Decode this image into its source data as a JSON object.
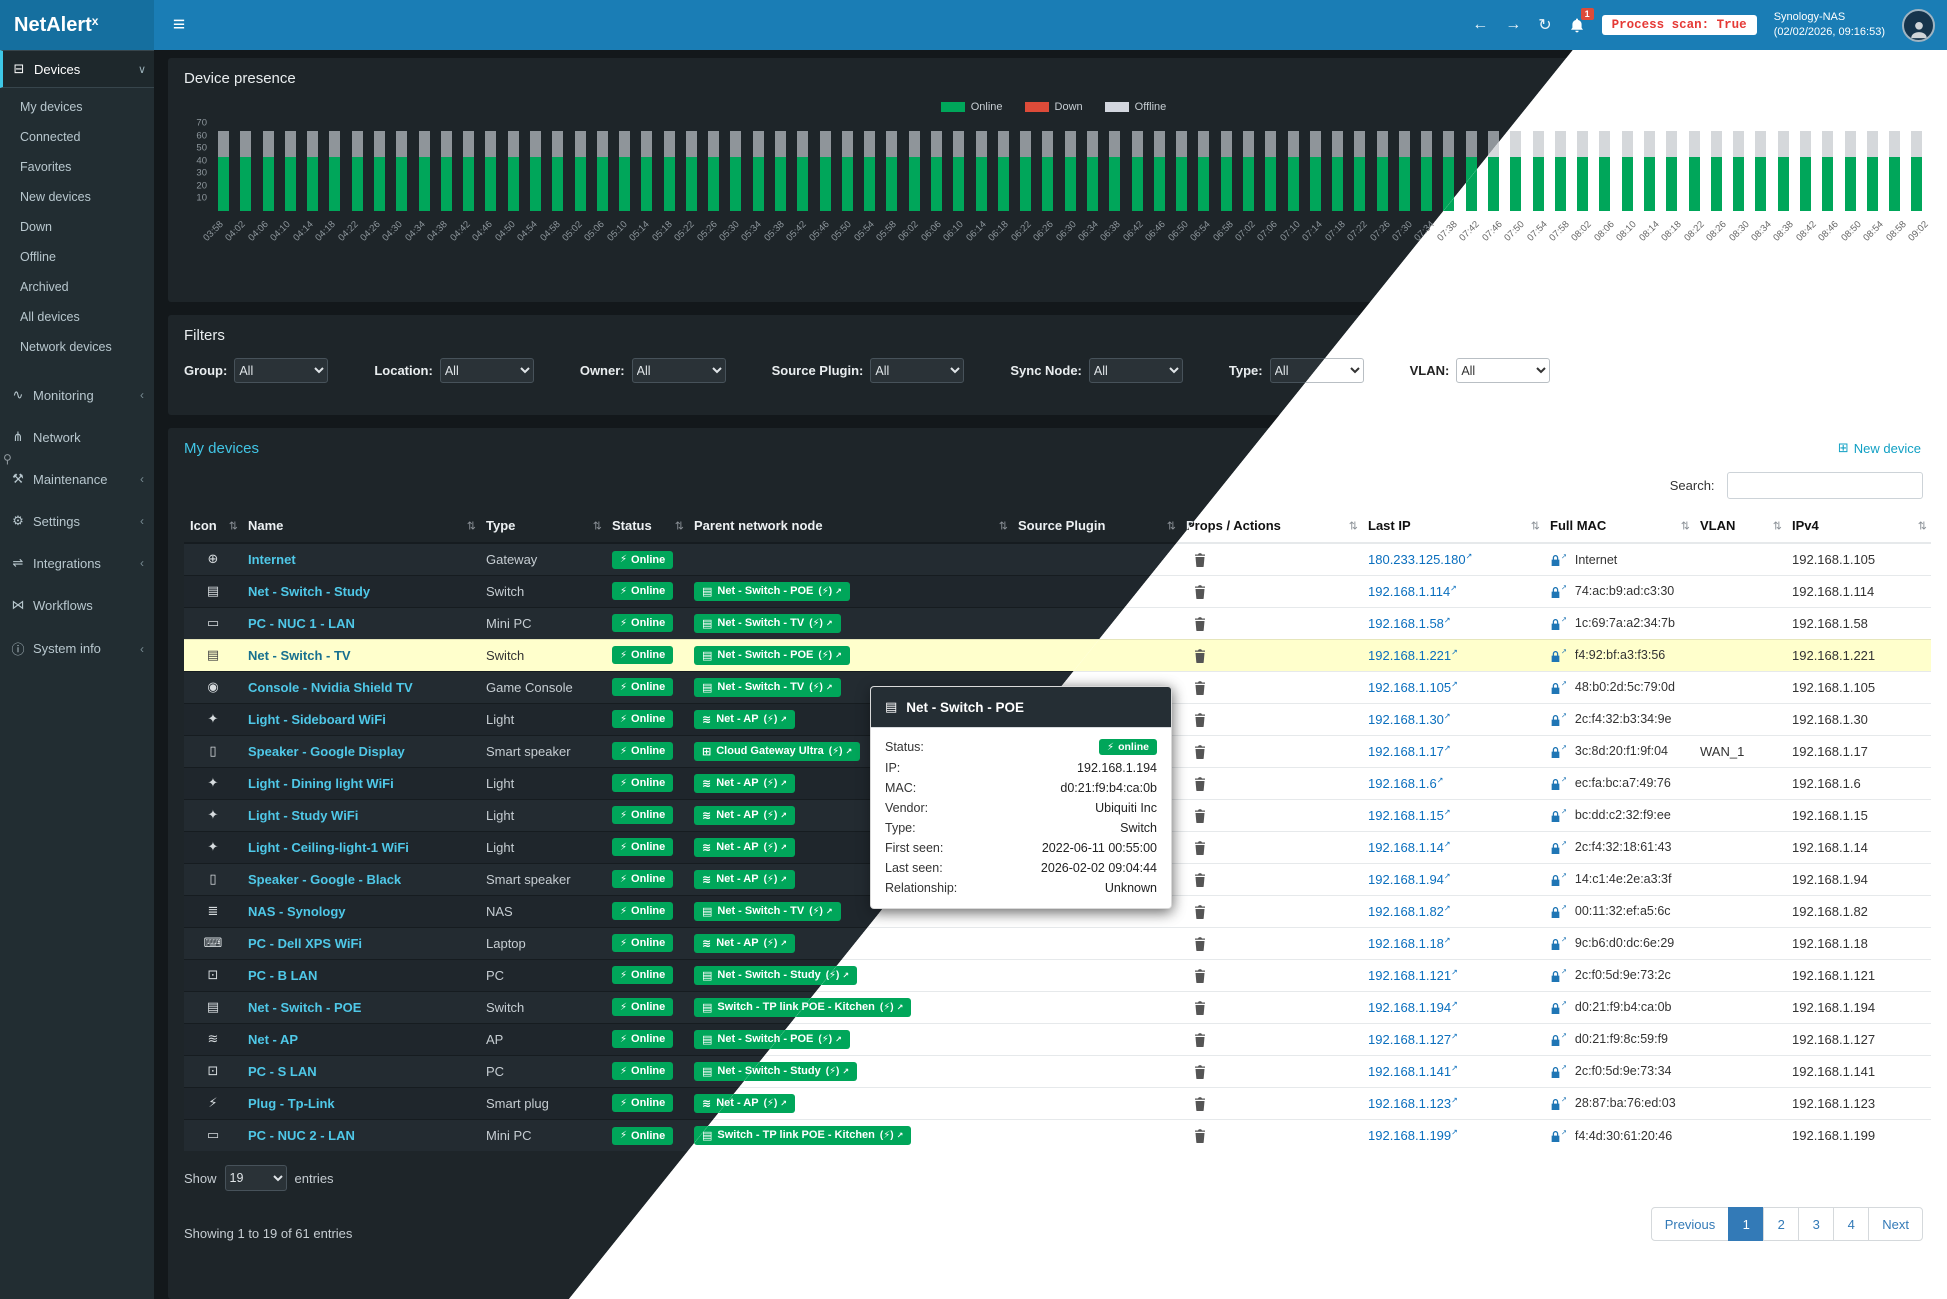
{
  "header": {
    "brand": "NetAlert",
    "brand_sup": "x",
    "process_scan": "Process scan: True",
    "nas_name": "Synology-NAS",
    "nas_time": "(02/02/2026, 09:16:53)",
    "notification_count": "1"
  },
  "sidebar": {
    "devices_label": "Devices",
    "device_items": [
      "My devices",
      "Connected",
      "Favorites",
      "New devices",
      "Down",
      "Offline",
      "Archived",
      "All devices",
      "Network devices"
    ],
    "menu": [
      {
        "label": "Monitoring",
        "icon": "monitoring",
        "chevron": "left"
      },
      {
        "label": "Network",
        "icon": "network",
        "chevron": null
      },
      {
        "label": "Maintenance",
        "icon": "maintenance",
        "chevron": "left"
      },
      {
        "label": "Settings",
        "icon": "settings",
        "chevron": "left"
      },
      {
        "label": "Integrations",
        "icon": "integrations",
        "chevron": "left"
      },
      {
        "label": "Workflows",
        "icon": "workflows",
        "chevron": null
      },
      {
        "label": "System info",
        "icon": "systeminfo",
        "chevron": "left"
      }
    ]
  },
  "presence": {
    "title": "Device presence",
    "legend": [
      {
        "label": "Online",
        "color": "#00a65a"
      },
      {
        "label": "Down",
        "color": "#dd4b39"
      },
      {
        "label": "Offline",
        "color": "#d2d6de"
      }
    ],
    "chart_data": {
      "type": "bar",
      "stacked": true,
      "x": [
        "03:58",
        "04:02",
        "04:06",
        "04:10",
        "04:14",
        "04:18",
        "04:22",
        "04:26",
        "04:30",
        "04:34",
        "04:38",
        "04:42",
        "04:46",
        "04:50",
        "04:54",
        "04:58",
        "05:02",
        "05:06",
        "05:10",
        "05:14",
        "05:18",
        "05:22",
        "05:26",
        "05:30",
        "05:34",
        "05:38",
        "05:42",
        "05:46",
        "05:50",
        "05:54",
        "05:58",
        "06:02",
        "06:06",
        "06:10",
        "06:14",
        "06:18",
        "06:22",
        "06:26",
        "06:30",
        "06:34",
        "06:38",
        "06:42",
        "06:46",
        "06:50",
        "06:54",
        "06:58",
        "07:02",
        "07:06",
        "07:10",
        "07:14",
        "07:18",
        "07:22",
        "07:26",
        "07:30",
        "07:34",
        "07:38",
        "07:42",
        "07:46",
        "07:50",
        "07:54",
        "07:58",
        "08:02",
        "08:06",
        "08:10",
        "08:14",
        "08:18",
        "08:22",
        "08:26",
        "08:30",
        "08:34",
        "08:38",
        "08:42",
        "08:46",
        "08:50",
        "08:54",
        "08:58",
        "09:02"
      ],
      "series": [
        {
          "name": "Online",
          "color": "#00a65a",
          "uniform_value": 43
        },
        {
          "name": "Down",
          "color": "#dd4b39",
          "uniform_value": 0
        },
        {
          "name": "Offline",
          "color": "#d2d6de",
          "uniform_value": 21
        }
      ],
      "ylim": [
        0,
        70
      ],
      "yticks": [
        70,
        60,
        50,
        40,
        30,
        20,
        10
      ]
    }
  },
  "filters": {
    "title": "Filters",
    "items": [
      {
        "label": "Group:",
        "value": "All"
      },
      {
        "label": "Location:",
        "value": "All"
      },
      {
        "label": "Owner:",
        "value": "All"
      },
      {
        "label": "Source Plugin:",
        "value": "All"
      },
      {
        "label": "Sync Node:",
        "value": "All"
      },
      {
        "label": "Type:",
        "value": "All"
      },
      {
        "label": "VLAN:",
        "value": "All"
      }
    ]
  },
  "devices_panel": {
    "title": "My devices",
    "new_device": "New device",
    "search_label": "Search:",
    "columns": [
      "Icon",
      "Name",
      "Type",
      "Status",
      "Parent network node",
      "Source Plugin",
      "Props / Actions",
      "Last IP",
      "Full MAC",
      "VLAN",
      "IPv4"
    ],
    "rows": [
      {
        "icon": "globe",
        "name": "Internet",
        "type": "Gateway",
        "status": "Online",
        "parent": null,
        "source_plugin": "",
        "last_ip": "180.233.125.180",
        "mac": "Internet",
        "vlan": "",
        "ipv4": "192.168.1.105",
        "highlight": false
      },
      {
        "icon": "ethernet",
        "name": "Net - Switch - Study",
        "type": "Switch",
        "status": "Online",
        "parent": {
          "icon": "ethernet",
          "label": "Net - Switch - POE"
        },
        "source_plugin": "",
        "last_ip": "192.168.1.114",
        "mac": "74:ac:b9:ad:c3:30",
        "vlan": "",
        "ipv4": "192.168.1.114",
        "highlight": false
      },
      {
        "icon": "mini-pc",
        "name": "PC - NUC 1 - LAN",
        "type": "Mini PC",
        "status": "Online",
        "parent": {
          "icon": "ethernet",
          "label": "Net - Switch - TV"
        },
        "source_plugin": "",
        "last_ip": "192.168.1.58",
        "mac": "1c:69:7a:a2:34:7b",
        "vlan": "",
        "ipv4": "192.168.1.58",
        "highlight": false
      },
      {
        "icon": "ethernet",
        "name": "Net - Switch - TV",
        "type": "Switch",
        "status": "Online",
        "parent": {
          "icon": "ethernet",
          "label": "Net - Switch - POE"
        },
        "source_plugin": "",
        "last_ip": "192.168.1.221",
        "mac": "f4:92:bf:a3:f3:56",
        "vlan": "",
        "ipv4": "192.168.1.221",
        "highlight": true
      },
      {
        "icon": "game",
        "name": "Console - Nvidia Shield TV",
        "type": "Game Console",
        "status": "Online",
        "parent": {
          "icon": "ethernet",
          "label": "Net - Switch - TV"
        },
        "source_plugin": "",
        "last_ip": "192.168.1.105",
        "mac": "48:b0:2d:5c:79:0d",
        "vlan": "",
        "ipv4": "192.168.1.105",
        "highlight": false
      },
      {
        "icon": "light",
        "name": "Light - Sideboard WiFi",
        "type": "Light",
        "status": "Online",
        "parent": {
          "icon": "wifi",
          "label": "Net - AP"
        },
        "source_plugin": "",
        "last_ip": "192.168.1.30",
        "mac": "2c:f4:32:b3:34:9e",
        "vlan": "",
        "ipv4": "192.168.1.30",
        "highlight": false
      },
      {
        "icon": "speaker",
        "name": "Speaker - Google Display",
        "type": "Smart speaker",
        "status": "Online",
        "parent": {
          "icon": "site",
          "label": "Cloud Gateway Ultra"
        },
        "source_plugin": "",
        "last_ip": "192.168.1.17",
        "mac": "3c:8d:20:f1:9f:04",
        "vlan": "WAN_1",
        "ipv4": "192.168.1.17",
        "highlight": false
      },
      {
        "icon": "light",
        "name": "Light - Dining light WiFi",
        "type": "Light",
        "status": "Online",
        "parent": {
          "icon": "wifi",
          "label": "Net - AP"
        },
        "source_plugin": "",
        "last_ip": "192.168.1.6",
        "mac": "ec:fa:bc:a7:49:76",
        "vlan": "",
        "ipv4": "192.168.1.6",
        "highlight": false
      },
      {
        "icon": "light",
        "name": "Light - Study WiFi",
        "type": "Light",
        "status": "Online",
        "parent": {
          "icon": "wifi",
          "label": "Net - AP"
        },
        "source_plugin": "",
        "last_ip": "192.168.1.15",
        "mac": "bc:dd:c2:32:f9:ee",
        "vlan": "",
        "ipv4": "192.168.1.15",
        "highlight": false
      },
      {
        "icon": "light",
        "name": "Light - Ceiling-light-1 WiFi",
        "type": "Light",
        "status": "Online",
        "parent": {
          "icon": "wifi",
          "label": "Net - AP"
        },
        "source_plugin": "",
        "last_ip": "192.168.1.14",
        "mac": "2c:f4:32:18:61:43",
        "vlan": "",
        "ipv4": "192.168.1.14",
        "highlight": false
      },
      {
        "icon": "speaker",
        "name": "Speaker - Google - Black",
        "type": "Smart speaker",
        "status": "Online",
        "parent": {
          "icon": "wifi",
          "label": "Net - AP"
        },
        "source_plugin": "",
        "last_ip": "192.168.1.94",
        "mac": "14:c1:4e:2e:a3:3f",
        "vlan": "",
        "ipv4": "192.168.1.94",
        "highlight": false
      },
      {
        "icon": "nas",
        "name": "NAS - Synology",
        "type": "NAS",
        "status": "Online",
        "parent": {
          "icon": "ethernet",
          "label": "Net - Switch - TV"
        },
        "source_plugin": "",
        "last_ip": "192.168.1.82",
        "mac": "00:11:32:ef:a5:6c",
        "vlan": "",
        "ipv4": "192.168.1.82",
        "highlight": false
      },
      {
        "icon": "laptop",
        "name": "PC - Dell XPS WiFi",
        "type": "Laptop",
        "status": "Online",
        "parent": {
          "icon": "wifi",
          "label": "Net - AP"
        },
        "source_plugin": "",
        "last_ip": "192.168.1.18",
        "mac": "9c:b6:d0:dc:6e:29",
        "vlan": "",
        "ipv4": "192.168.1.18",
        "highlight": false
      },
      {
        "icon": "pc",
        "name": "PC - B LAN",
        "type": "PC",
        "status": "Online",
        "parent": {
          "icon": "ethernet",
          "label": "Net - Switch - Study"
        },
        "source_plugin": "",
        "last_ip": "192.168.1.121",
        "mac": "2c:f0:5d:9e:73:2c",
        "vlan": "",
        "ipv4": "192.168.1.121",
        "highlight": false
      },
      {
        "icon": "ethernet",
        "name": "Net - Switch - POE",
        "type": "Switch",
        "status": "Online",
        "parent": {
          "icon": "ethernet",
          "label": "Switch - TP link POE - Kitchen"
        },
        "source_plugin": "",
        "last_ip": "192.168.1.194",
        "mac": "d0:21:f9:b4:ca:0b",
        "vlan": "",
        "ipv4": "192.168.1.194",
        "highlight": false
      },
      {
        "icon": "wifi",
        "name": "Net - AP",
        "type": "AP",
        "status": "Online",
        "parent": {
          "icon": "ethernet",
          "label": "Net - Switch - POE"
        },
        "source_plugin": "",
        "last_ip": "192.168.1.127",
        "mac": "d0:21:f9:8c:59:f9",
        "vlan": "",
        "ipv4": "192.168.1.127",
        "highlight": false
      },
      {
        "icon": "pc",
        "name": "PC - S LAN",
        "type": "PC",
        "status": "Online",
        "parent": {
          "icon": "ethernet",
          "label": "Net - Switch - Study"
        },
        "source_plugin": "",
        "last_ip": "192.168.1.141",
        "mac": "2c:f0:5d:9e:73:34",
        "vlan": "",
        "ipv4": "192.168.1.141",
        "highlight": false
      },
      {
        "icon": "plug",
        "name": "Plug - Tp-Link",
        "type": "Smart plug",
        "status": "Online",
        "parent": {
          "icon": "wifi",
          "label": "Net - AP"
        },
        "source_plugin": "",
        "last_ip": "192.168.1.123",
        "mac": "28:87:ba:76:ed:03",
        "vlan": "",
        "ipv4": "192.168.1.123",
        "highlight": false
      },
      {
        "icon": "mini-pc",
        "name": "PC - NUC 2 - LAN",
        "type": "Mini PC",
        "status": "Online",
        "parent": {
          "icon": "ethernet",
          "label": "Switch - TP link POE - Kitchen"
        },
        "source_plugin": "",
        "last_ip": "192.168.1.199",
        "mac": "f4:4d:30:61:20:46",
        "vlan": "",
        "ipv4": "192.168.1.199",
        "highlight": false
      }
    ],
    "show_label": "Show",
    "entries_per_page": "19",
    "entries_label": "entries",
    "summary": "Showing 1 to 19 of 61 entries",
    "pagination": {
      "previous": "Previous",
      "pages": [
        "1",
        "2",
        "3",
        "4"
      ],
      "active": "1",
      "next": "Next"
    }
  },
  "tooltip": {
    "title": "Net - Switch - POE",
    "fields": [
      {
        "label": "Status:",
        "value": "online",
        "badge": true
      },
      {
        "label": "IP:",
        "value": "192.168.1.194"
      },
      {
        "label": "MAC:",
        "value": "d0:21:f9:b4:ca:0b"
      },
      {
        "label": "Vendor:",
        "value": "Ubiquiti Inc"
      },
      {
        "label": "Type:",
        "value": "Switch"
      },
      {
        "label": "First seen:",
        "value": "2022-06-11 00:55:00"
      },
      {
        "label": "Last seen:",
        "value": "2026-02-02 09:04:44"
      },
      {
        "label": "Relationship:",
        "value": "Unknown"
      }
    ]
  },
  "colors": {
    "accent_green": "#00a65a",
    "accent_red": "#dd4b39",
    "navbar_blue": "#1a7db5",
    "highlight_row": "#ffffcc"
  }
}
